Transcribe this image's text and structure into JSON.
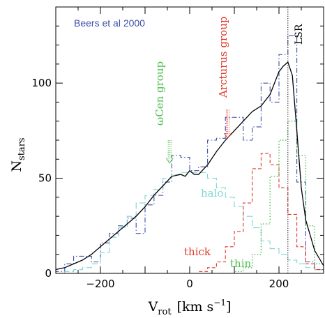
{
  "chart_data": {
    "type": "line",
    "xlabel": "V",
    "xlabel_sub": "rot",
    "xlabel_units": "[km s",
    "xlabel_units_sup": "−1",
    "xlabel_units_end": "]",
    "ylabel": "N",
    "ylabel_sub": "stars",
    "xlim": [
      -300,
      300
    ],
    "ylim": [
      0,
      140
    ],
    "xticks": [
      -200,
      0,
      200
    ],
    "yticks": [
      0,
      50,
      100
    ],
    "xtick_labels": [
      "−200",
      "0",
      "200"
    ],
    "ytick_labels": [
      "0",
      "50",
      "100"
    ],
    "grid": false,
    "colors": {
      "total": "#000000",
      "beers": "#3b4fa8",
      "halo": "#7fd6d2",
      "thick": "#e0392b",
      "thin": "#4cbf4c",
      "arcturus": "#e0392b",
      "omegacen": "#4cbf4c",
      "lsr": "#000000"
    },
    "bin_edges": [
      -300,
      -280,
      -260,
      -240,
      -220,
      -200,
      -180,
      -160,
      -140,
      -120,
      -100,
      -80,
      -60,
      -40,
      -20,
      0,
      20,
      40,
      60,
      80,
      100,
      120,
      140,
      160,
      180,
      200,
      220,
      240,
      260,
      280,
      300
    ],
    "series": [
      {
        "key": "beers",
        "name": "Beers et al 2000",
        "style": "step-dashdot",
        "values": [
          1,
          5,
          9,
          9,
          6,
          16,
          21,
          25,
          29,
          21,
          36,
          41,
          48,
          62,
          61,
          54,
          56,
          70,
          71,
          82,
          82,
          70,
          77,
          100,
          90,
          115,
          125,
          48,
          6,
          2
        ]
      },
      {
        "key": "halo",
        "name": "halo",
        "style": "step-longdash",
        "values": [
          0,
          1,
          2,
          3,
          5,
          11,
          19,
          24,
          30,
          37,
          41,
          44,
          50,
          52,
          53,
          53,
          53,
          50,
          45,
          40,
          35,
          30,
          24,
          17,
          13,
          10,
          7,
          5,
          3,
          2
        ]
      },
      {
        "key": "thick",
        "name": "thick",
        "style": "step-dash",
        "values": [
          0,
          0,
          0,
          0,
          0,
          0,
          0,
          0,
          0,
          0,
          0,
          0,
          0,
          0,
          0,
          0,
          1,
          3,
          6,
          14,
          22,
          37,
          55,
          63,
          57,
          45,
          31,
          14,
          5,
          2
        ]
      },
      {
        "key": "thin",
        "name": "thin",
        "style": "step-dot",
        "values": [
          0,
          0,
          0,
          0,
          0,
          0,
          0,
          0,
          0,
          0,
          0,
          0,
          0,
          0,
          0,
          0,
          0,
          0,
          0,
          0,
          1,
          3,
          10,
          26,
          51,
          70,
          80,
          62,
          25,
          5
        ]
      },
      {
        "key": "total",
        "name": "",
        "style": "smooth-solid",
        "x": [
          -300,
          -280,
          -260,
          -240,
          -220,
          -200,
          -180,
          -160,
          -140,
          -120,
          -100,
          -80,
          -60,
          -40,
          -20,
          -10,
          0,
          10,
          20,
          40,
          60,
          80,
          100,
          120,
          140,
          160,
          180,
          200,
          210,
          220,
          230,
          240,
          250,
          260,
          280,
          300
        ],
        "y": [
          2,
          3,
          5,
          7,
          10,
          14,
          18,
          22,
          26,
          30,
          35,
          41,
          46,
          51,
          52,
          51,
          54,
          52,
          52,
          57,
          64,
          70,
          75,
          80,
          85,
          88,
          94,
          106,
          109,
          111,
          104,
          75,
          45,
          28,
          12,
          4
        ]
      }
    ],
    "annotations": {
      "source": "Beers et al 2000",
      "halo": "halo",
      "thick": "thick",
      "thin": "thin",
      "arcturus": "Arcturus group",
      "omegacen": "ωCen group",
      "lsr": "LSR"
    },
    "arrows": [
      {
        "key": "arcturus",
        "x": 85,
        "y_top": 86,
        "y_bottom": 71
      },
      {
        "key": "omegacen",
        "x": -45,
        "y_top": 70,
        "y_bottom": 58
      }
    ],
    "lsr_x": 220
  }
}
